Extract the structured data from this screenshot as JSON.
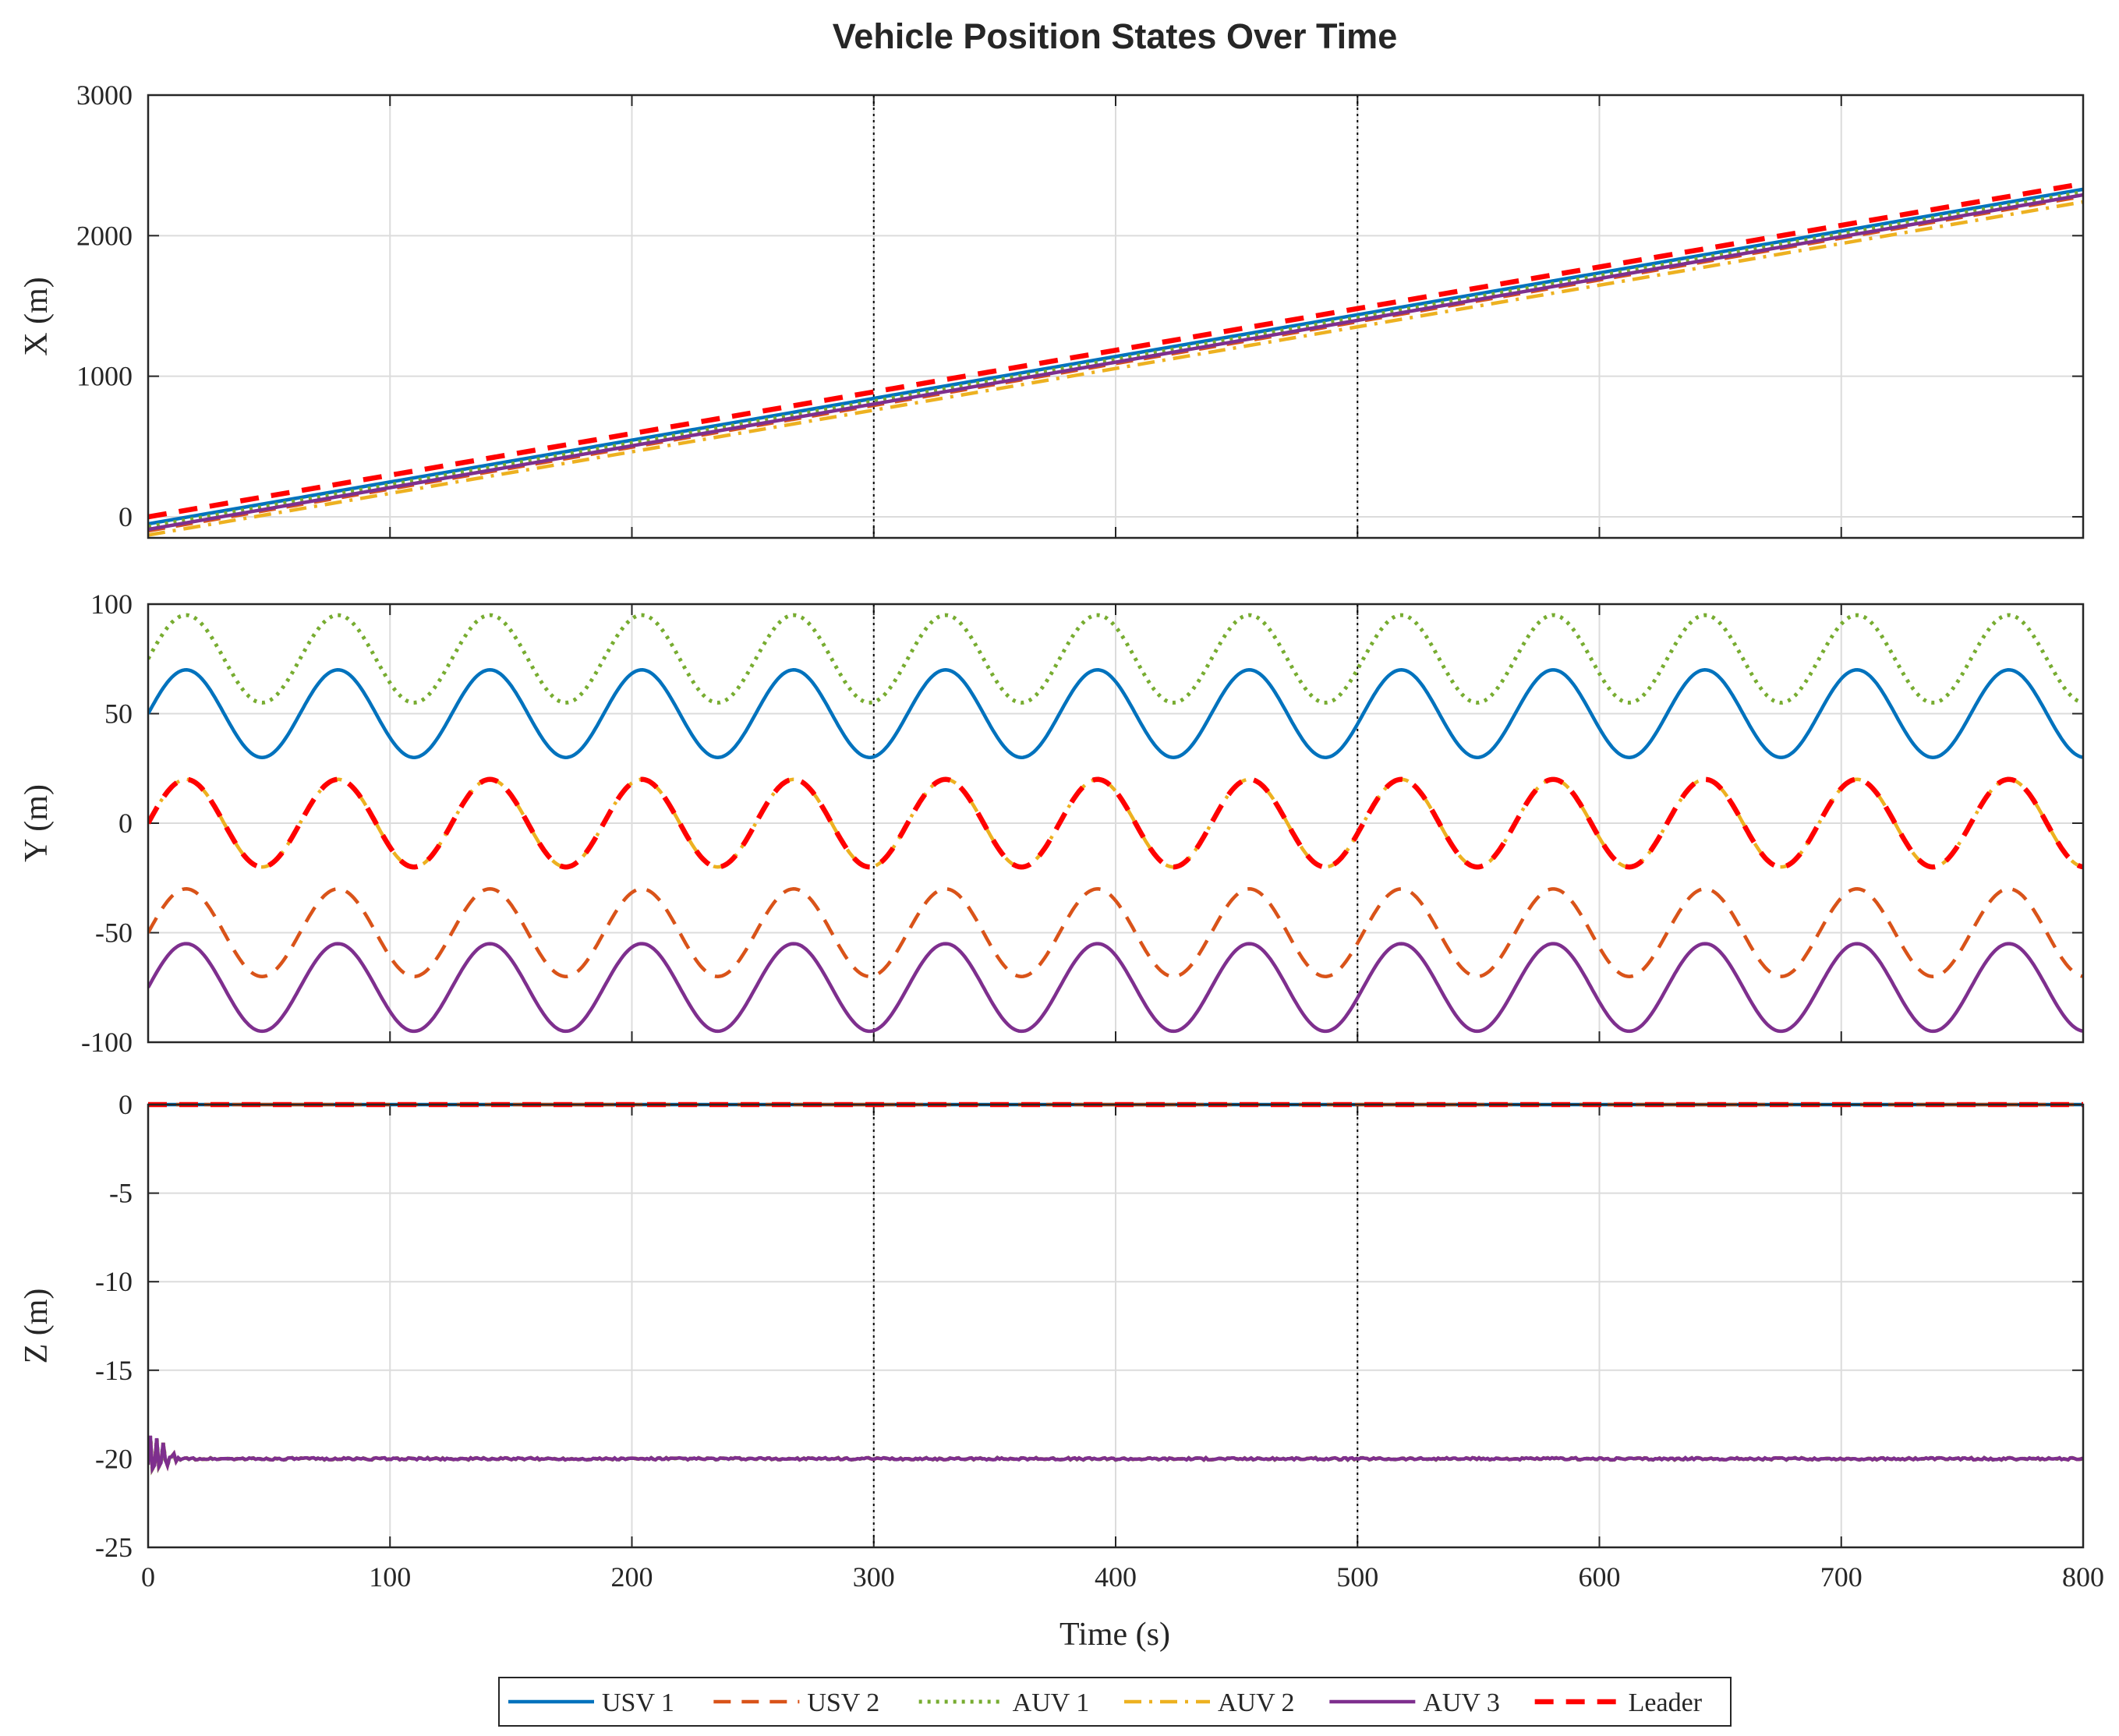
{
  "chart_data": {
    "type": "line",
    "title": "Vehicle Position States Over Time",
    "xlabel": "Time (s)",
    "xlim": [
      0,
      800
    ],
    "xticks": [
      "0",
      "100",
      "200",
      "300",
      "400",
      "500",
      "600",
      "700",
      "800"
    ],
    "vlines": [
      300,
      500
    ],
    "grid": true,
    "legend": {
      "placement": "bottom-center",
      "entries": [
        "USV 1",
        "USV 2",
        "AUV 1",
        "AUV 2",
        "AUV 3",
        "Leader"
      ]
    },
    "series": [
      {
        "name": "USV 1",
        "color": "#0072BD",
        "style": "solid"
      },
      {
        "name": "USV 2",
        "color": "#D95319",
        "style": "dashed"
      },
      {
        "name": "AUV 1",
        "color": "#77AC30",
        "style": "dotted"
      },
      {
        "name": "AUV 2",
        "color": "#EDB120",
        "style": "dashdot"
      },
      {
        "name": "AUV 3",
        "color": "#7E2F8E",
        "style": "solid"
      },
      {
        "name": "Leader",
        "color": "#FF0000",
        "style": "dashed-bold"
      }
    ],
    "subplots": [
      {
        "ylabel": "X (m)",
        "ylim": [
          -150,
          3000
        ],
        "yticks": [
          "0",
          "1000",
          "2000",
          "3000"
        ],
        "series_data": {
          "USV 1": {
            "kind": "linear",
            "start": -50,
            "end": 2330
          },
          "USV 2": {
            "kind": "linear",
            "start": -100,
            "end": 2280
          },
          "AUV 1": {
            "kind": "linear",
            "start": -70,
            "end": 2310
          },
          "AUV 2": {
            "kind": "linear",
            "start": -130,
            "end": 2240
          },
          "AUV 3": {
            "kind": "linear",
            "start": -90,
            "end": 2290
          },
          "Leader": {
            "kind": "linear",
            "start": 0,
            "end": 2370
          }
        }
      },
      {
        "ylabel": "Y (m)",
        "ylim": [
          -100,
          100
        ],
        "yticks": [
          "-100",
          "-50",
          "0",
          "50",
          "100"
        ],
        "series_data": {
          "USV 1": {
            "kind": "sine",
            "offset": 50,
            "amplitude": 20,
            "period": 62.8
          },
          "USV 2": {
            "kind": "sine",
            "offset": -50,
            "amplitude": 20,
            "period": 62.8
          },
          "AUV 1": {
            "kind": "sine",
            "offset": 75,
            "amplitude": 20,
            "period": 62.8
          },
          "AUV 2": {
            "kind": "sine",
            "offset": 0,
            "amplitude": 20,
            "period": 62.8
          },
          "AUV 3": {
            "kind": "sine",
            "offset": -75,
            "amplitude": 20,
            "period": 62.8
          },
          "Leader": {
            "kind": "sine",
            "offset": 0,
            "amplitude": 20,
            "period": 62.8
          }
        }
      },
      {
        "ylabel": "Z (m)",
        "ylim": [
          -25,
          0
        ],
        "yticks": [
          "-25",
          "-20",
          "-15",
          "-10",
          "-5",
          "0"
        ],
        "series_data": {
          "USV 1": {
            "kind": "constant",
            "value": 0
          },
          "USV 2": {
            "kind": "constant",
            "value": 0
          },
          "AUV 1": {
            "kind": "transient",
            "value": -20
          },
          "AUV 2": {
            "kind": "transient",
            "value": -20
          },
          "AUV 3": {
            "kind": "transient",
            "value": -20
          },
          "Leader": {
            "kind": "constant",
            "value": 0
          }
        }
      }
    ]
  }
}
